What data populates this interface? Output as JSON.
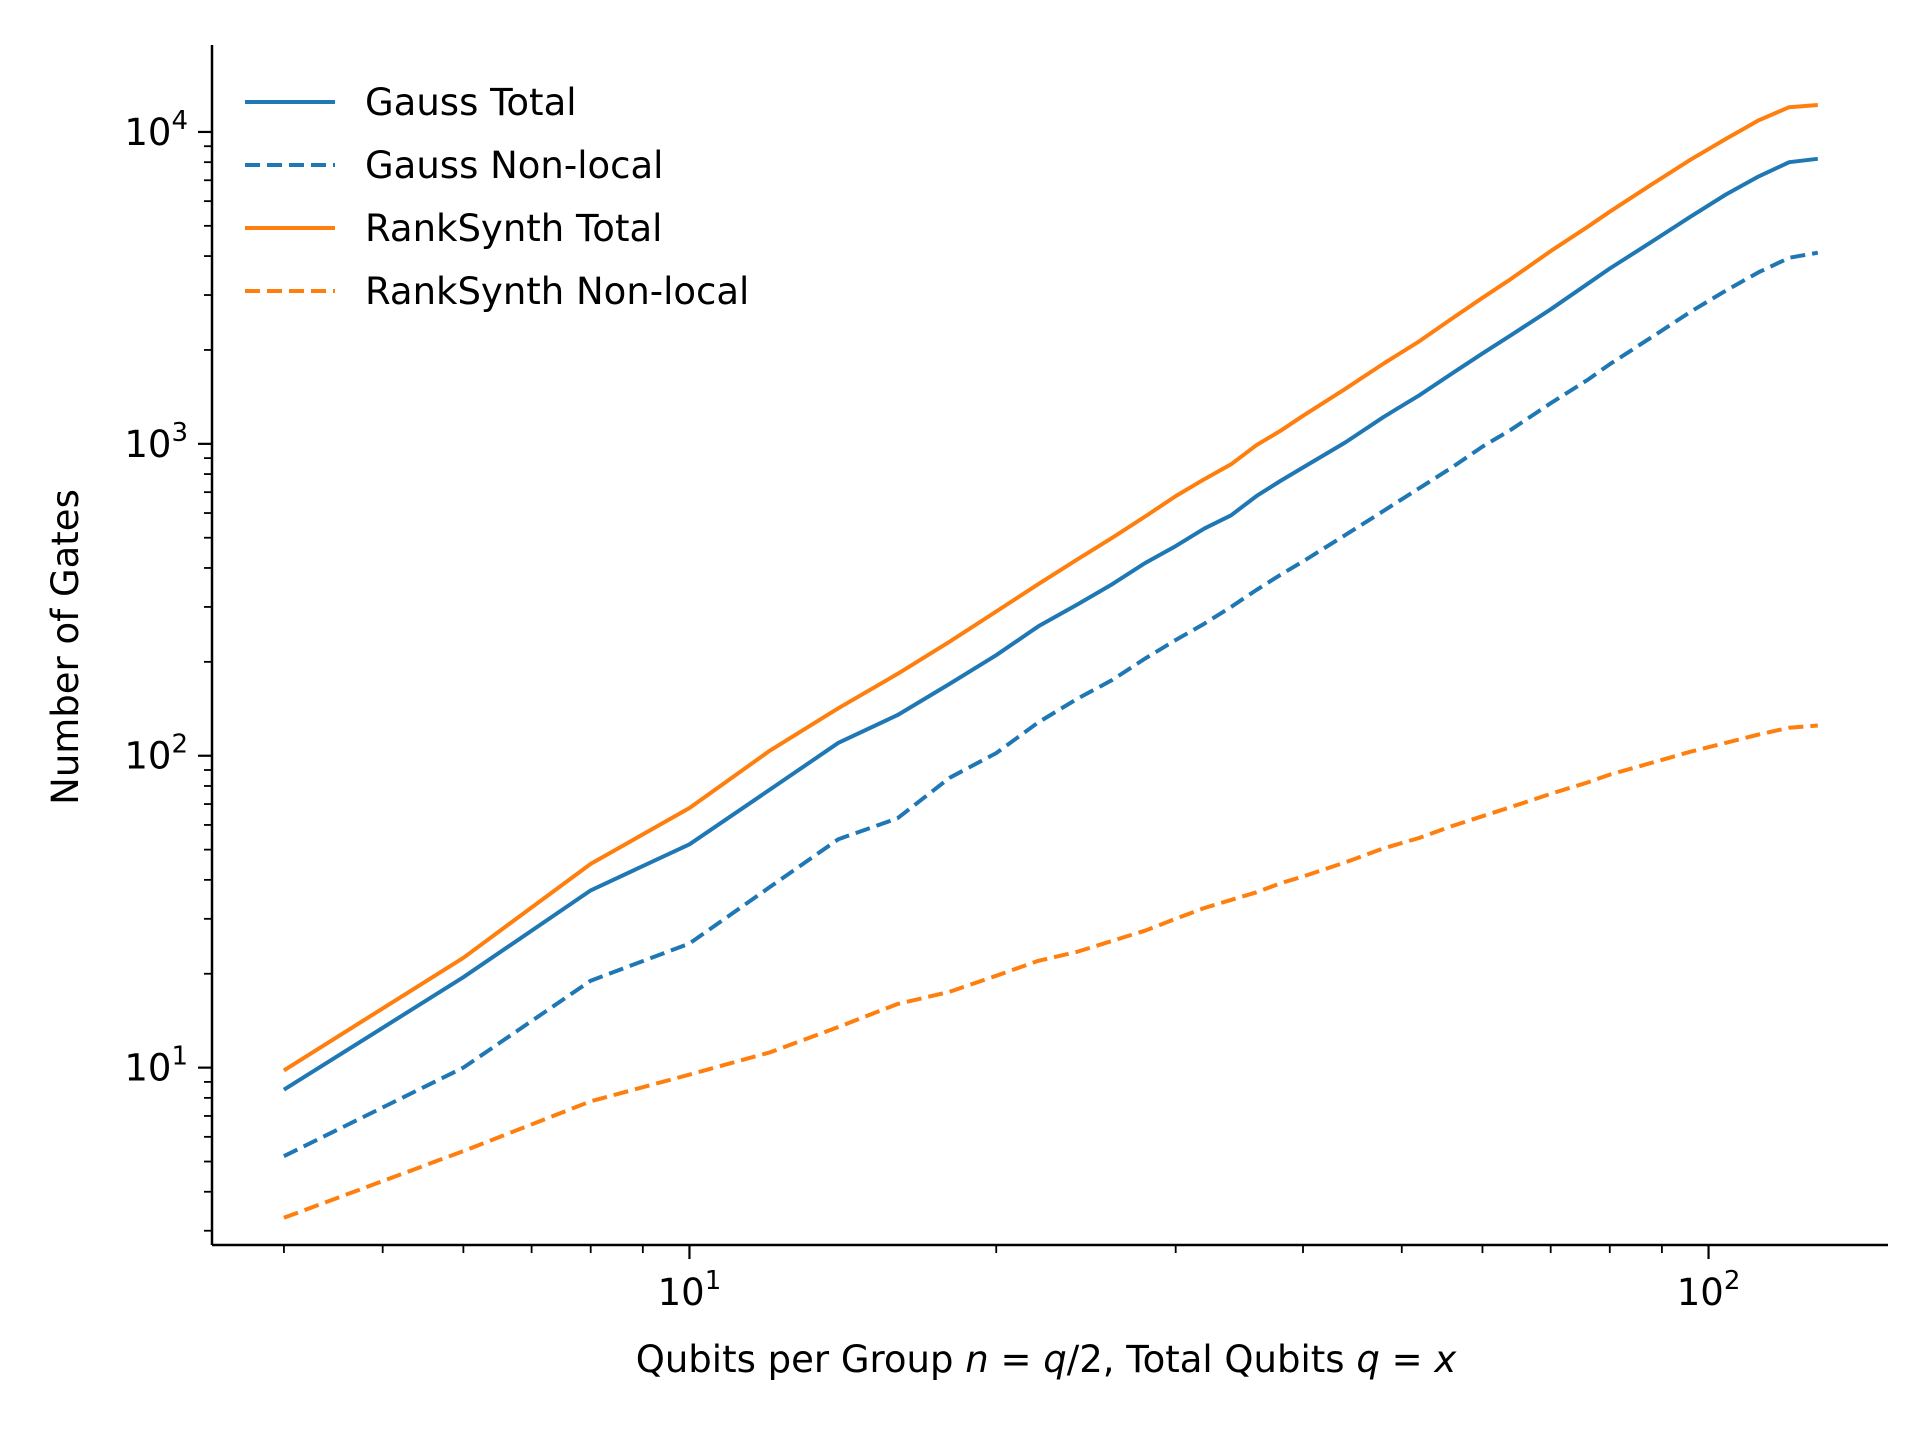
{
  "chart_data": {
    "type": "line",
    "xlabel": {
      "prefix": "Qubits per Group ",
      "var_n": "n",
      "eq1": " = ",
      "var_q": "q",
      "div2": "/2, Total Qubits ",
      "var_q2": "q",
      "eq2": " = ",
      "var_x": "x"
    },
    "ylabel": "Number of Gates",
    "x_scale": "log",
    "y_scale": "log",
    "xlim": [
      3.4,
      150
    ],
    "ylim": [
      2.7,
      19000
    ],
    "legend_position": "top-left",
    "grid": false,
    "x_ticks": [
      {
        "value": 10,
        "base": "10",
        "exp": "1"
      },
      {
        "value": 100,
        "base": "10",
        "exp": "2"
      }
    ],
    "y_ticks": [
      {
        "value": 10,
        "base": "10",
        "exp": "1"
      },
      {
        "value": 100,
        "base": "10",
        "exp": "2"
      },
      {
        "value": 1000,
        "base": "10",
        "exp": "3"
      },
      {
        "value": 10000,
        "base": "10",
        "exp": "4"
      }
    ],
    "series": [
      {
        "name": "Gauss Total",
        "color": "#1f77b4",
        "dash": "solid",
        "x": [
          4,
          6,
          8,
          10,
          12,
          14,
          16,
          18,
          20,
          22,
          24,
          26,
          28,
          30,
          32,
          34,
          36,
          38,
          40,
          44,
          48,
          52,
          56,
          60,
          64,
          70,
          76,
          80,
          88,
          96,
          104,
          112,
          120,
          128
        ],
        "y": [
          8.5,
          19.5,
          37,
          52,
          78,
          110,
          135,
          170,
          210,
          260,
          305,
          355,
          415,
          470,
          535,
          590,
          680,
          760,
          840,
          1010,
          1220,
          1430,
          1680,
          1950,
          2230,
          2700,
          3250,
          3650,
          4450,
          5350,
          6300,
          7200,
          8000,
          8200
        ]
      },
      {
        "name": "Gauss Non-local",
        "color": "#1f77b4",
        "dash": "dashed",
        "x": [
          4,
          6,
          8,
          10,
          12,
          14,
          16,
          18,
          20,
          22,
          24,
          26,
          28,
          30,
          32,
          34,
          36,
          38,
          40,
          44,
          48,
          52,
          56,
          60,
          64,
          70,
          76,
          80,
          88,
          96,
          104,
          112,
          120,
          128
        ],
        "y": [
          5.2,
          10,
          19,
          25,
          38,
          54,
          63,
          85,
          102,
          128,
          152,
          175,
          205,
          235,
          265,
          300,
          340,
          380,
          420,
          510,
          610,
          720,
          840,
          980,
          1110,
          1350,
          1600,
          1800,
          2200,
          2650,
          3100,
          3550,
          3950,
          4100
        ]
      },
      {
        "name": "RankSynth Total",
        "color": "#ff7f0e",
        "dash": "solid",
        "x": [
          4,
          6,
          8,
          10,
          12,
          14,
          16,
          18,
          20,
          22,
          24,
          26,
          28,
          30,
          32,
          34,
          36,
          38,
          40,
          44,
          48,
          52,
          56,
          60,
          64,
          70,
          76,
          80,
          88,
          96,
          104,
          112,
          120,
          128
        ],
        "y": [
          9.8,
          22.5,
          45,
          68,
          104,
          142,
          183,
          232,
          290,
          355,
          425,
          500,
          585,
          680,
          770,
          860,
          990,
          1100,
          1230,
          1500,
          1810,
          2130,
          2520,
          2940,
          3380,
          4150,
          4950,
          5550,
          6800,
          8150,
          9500,
          10900,
          12000,
          12200
        ]
      },
      {
        "name": "RankSynth Non-local",
        "color": "#ff7f0e",
        "dash": "dashed",
        "x": [
          4,
          6,
          8,
          10,
          12,
          14,
          16,
          18,
          20,
          22,
          24,
          26,
          28,
          30,
          32,
          34,
          36,
          38,
          40,
          44,
          48,
          52,
          56,
          60,
          64,
          70,
          76,
          80,
          88,
          96,
          104,
          112,
          120,
          128
        ],
        "y": [
          3.3,
          5.4,
          7.8,
          9.5,
          11.2,
          13.5,
          16,
          17.5,
          19.7,
          22,
          23.5,
          25.5,
          27.5,
          30,
          32.5,
          34.5,
          36.5,
          39,
          41,
          45.5,
          50.5,
          54.5,
          59.5,
          64,
          68.5,
          75.5,
          82,
          87,
          95,
          103,
          110,
          117,
          123,
          125
        ]
      }
    ]
  }
}
